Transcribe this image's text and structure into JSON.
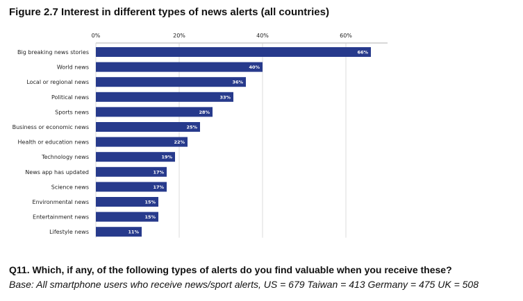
{
  "title": "Figure 2.7 Interest in different types of news alerts (all countries)",
  "question": "Q11. Which, if any, of the following types of alerts do you find valuable when you receive these?",
  "base": "Base: All smartphone users who receive news/sport alerts, US = 679 Taiwan = 413 Germany = 475 UK = 508",
  "chart_data": {
    "type": "bar",
    "orientation": "horizontal",
    "categories": [
      "Big breaking news stories",
      "World news",
      "Local or regional news",
      "Political news",
      "Sports news",
      "Business or economic news",
      "Health or education news",
      "Technology news",
      "News app has updated",
      "Science news",
      "Environmental news",
      "Entertainment news",
      "Lifestyle news"
    ],
    "values": [
      66,
      40,
      36,
      33,
      28,
      25,
      22,
      19,
      17,
      17,
      15,
      15,
      11
    ],
    "value_labels": [
      "66%",
      "40%",
      "36%",
      "33%",
      "28%",
      "25%",
      "22%",
      "19%",
      "17%",
      "17%",
      "15%",
      "15%",
      "11%"
    ],
    "x_ticks": [
      0,
      20,
      40,
      60
    ],
    "x_tick_labels": [
      "0%",
      "20%",
      "40%",
      "60%"
    ],
    "xlim": [
      0,
      70
    ],
    "grid": "vertical",
    "bar_color": "#273a8c",
    "grid_color": "#cccccc"
  }
}
